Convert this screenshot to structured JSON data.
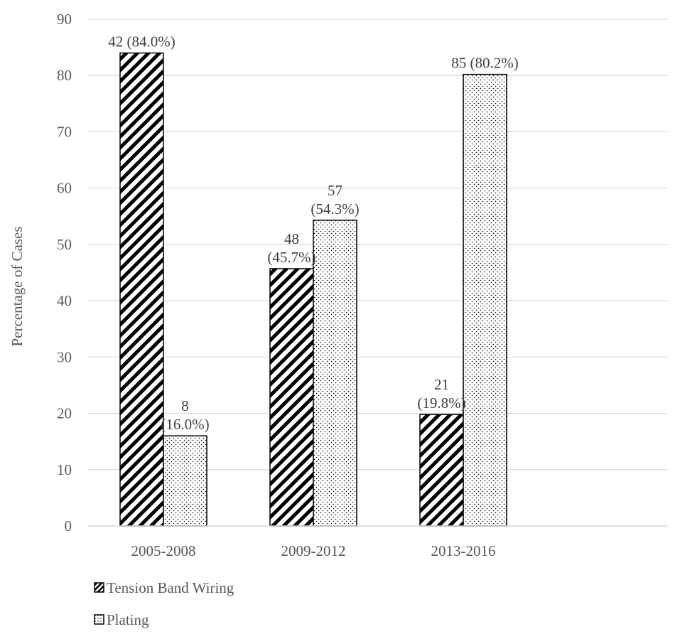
{
  "chart_data": {
    "type": "bar",
    "categories": [
      "2005-2008",
      "2009-2012",
      "2013-2016"
    ],
    "series": [
      {
        "name": "Tension Band Wiring",
        "pattern": "diagonal-hatch",
        "values": [
          84.0,
          45.7,
          19.8
        ],
        "labels": [
          [
            "42 (84.0%)"
          ],
          [
            "48",
            "(45.7%)"
          ],
          [
            "21",
            "(19.8%)"
          ]
        ]
      },
      {
        "name": "Plating",
        "pattern": "dots",
        "values": [
          16.0,
          54.3,
          80.2
        ],
        "labels": [
          [
            "8",
            "(16.0%)"
          ],
          [
            "57",
            "(54.3%)"
          ],
          [
            "85 (80.2%)"
          ]
        ]
      }
    ],
    "title": "",
    "xlabel": "",
    "ylabel": "Percentage of Cases",
    "ylim": [
      0,
      90
    ],
    "yticks": [
      0,
      10,
      20,
      30,
      40,
      50,
      60,
      70,
      80,
      90
    ],
    "grid": true,
    "legend_position": "bottom-left"
  },
  "colors": {
    "bar_outline": "#000000",
    "hatch": "#000000",
    "dots": "#000000",
    "gridline": "#d9d9d9",
    "axis_line": "#d9d9d9",
    "tick_text": "#595959",
    "label_text": "#404040"
  }
}
